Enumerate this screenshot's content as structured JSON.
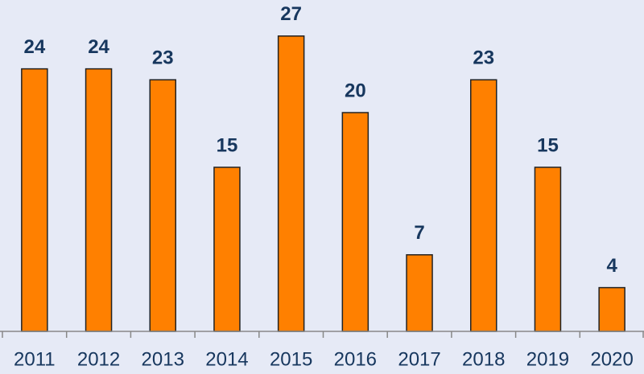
{
  "chart_data": {
    "type": "bar",
    "categories": [
      "2011",
      "2012",
      "2013",
      "2014",
      "2015",
      "2016",
      "2017",
      "2018",
      "2019",
      "2020"
    ],
    "values": [
      24,
      24,
      23,
      15,
      27,
      20,
      7,
      23,
      15,
      4
    ],
    "color": "#ff8000",
    "ylim": [
      0,
      30
    ]
  }
}
